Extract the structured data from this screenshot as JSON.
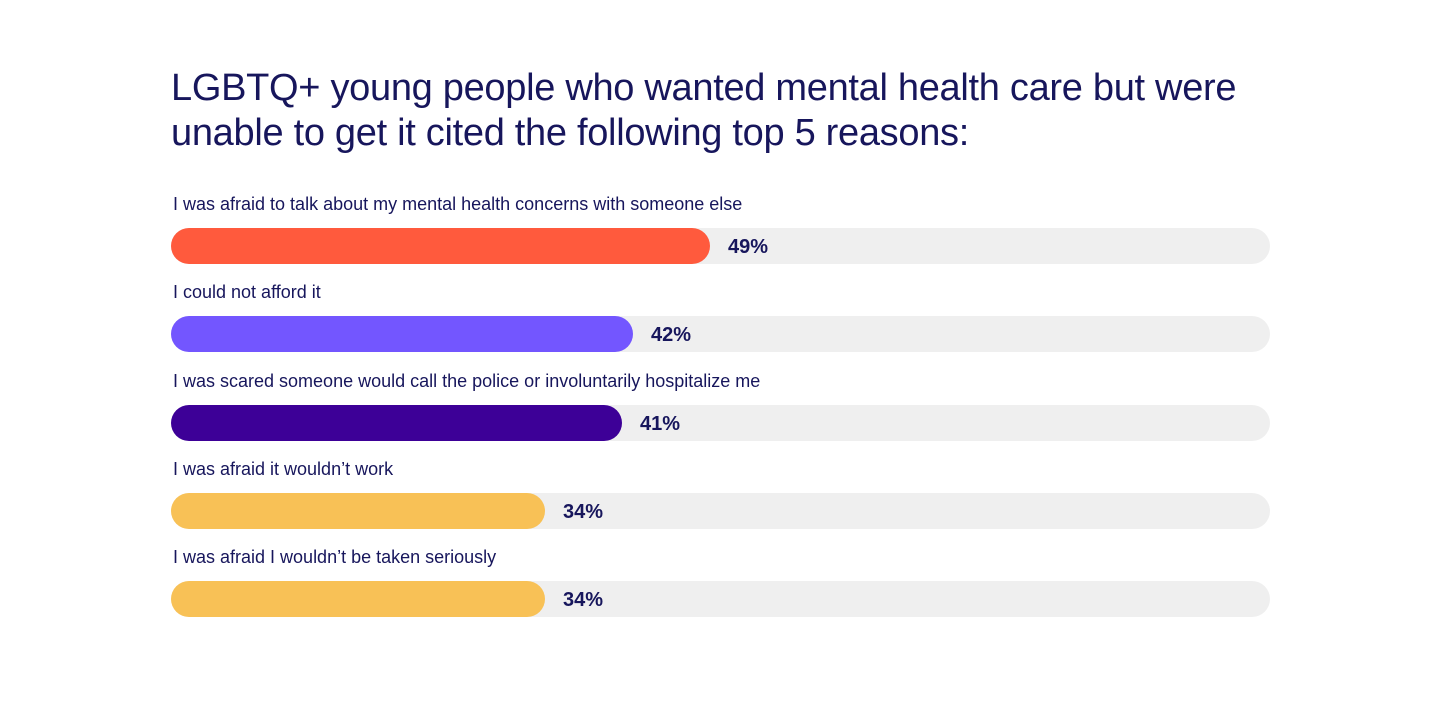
{
  "title": "LGBTQ+ young people who wanted mental health care but were unable to get it cited the following top 5 reasons:",
  "chart_data": {
    "type": "bar",
    "orientation": "horizontal",
    "title": "LGBTQ+ young people who wanted mental health care but were unable to get it cited the following top 5 reasons:",
    "xlabel": "",
    "ylabel": "",
    "xlim": [
      0,
      100
    ],
    "grid": false,
    "categories": [
      "I was afraid to talk about my mental health concerns with someone else",
      "I could not afford it",
      "I was scared someone would call the police or involuntarily hospitalize me",
      "I was afraid it wouldn’t work",
      "I was afraid I wouldn’t be taken seriously"
    ],
    "values": [
      49,
      42,
      41,
      34,
      34
    ],
    "value_labels": [
      "49%",
      "42%",
      "41%",
      "34%",
      "34%"
    ],
    "colors": [
      "#ff5a3d",
      "#7356ff",
      "#3d0097",
      "#f8c156",
      "#f8c156"
    ],
    "track_color": "#efefef"
  }
}
